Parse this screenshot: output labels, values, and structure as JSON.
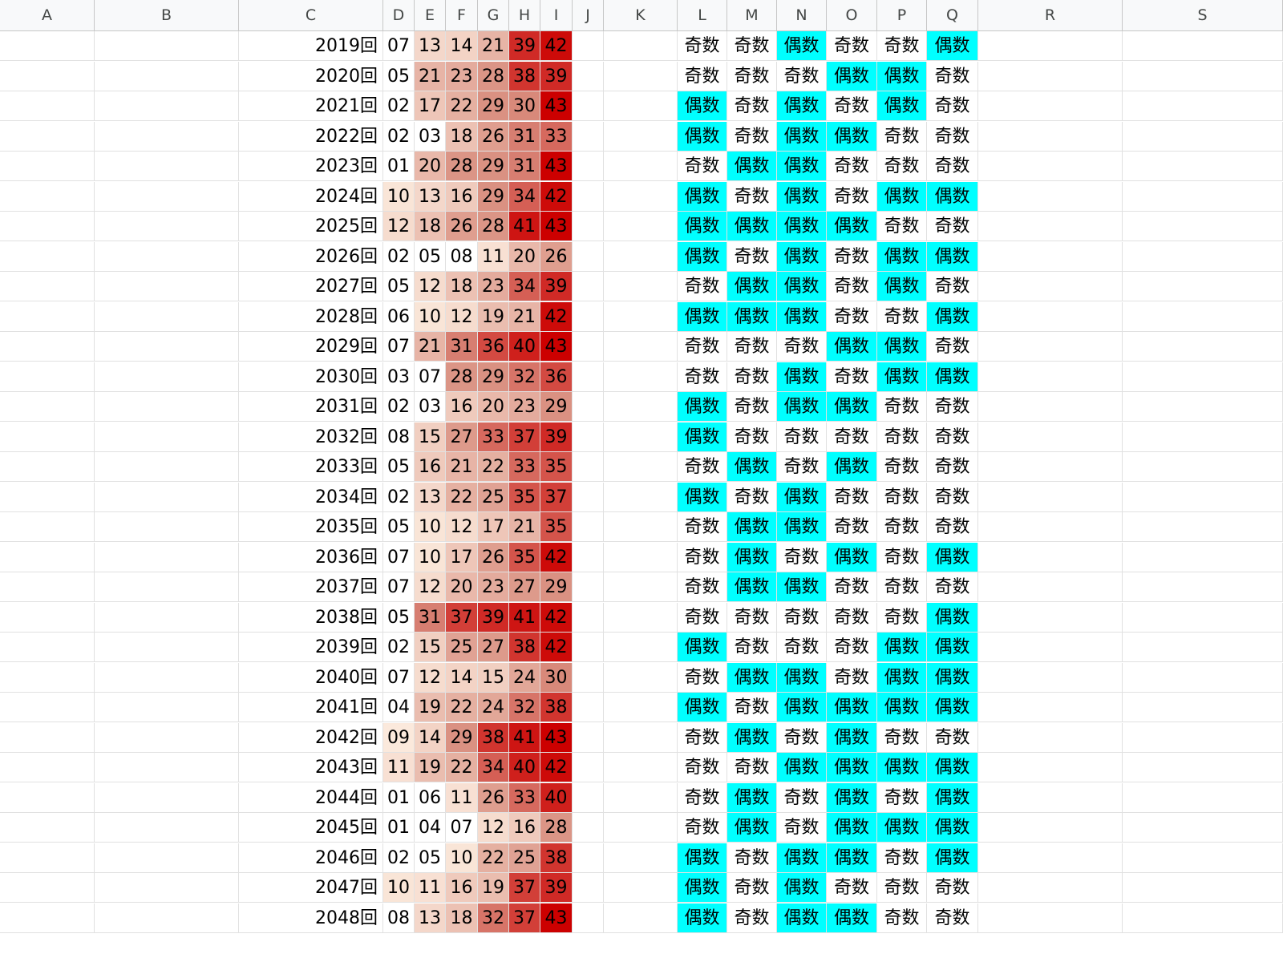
{
  "columns": [
    "A",
    "B",
    "C",
    "D",
    "E",
    "F",
    "G",
    "H",
    "I",
    "J",
    "K",
    "L",
    "M",
    "N",
    "O",
    "P",
    "Q",
    "R",
    "S"
  ],
  "colors": {
    "even_highlight": "#00ffff",
    "odd_background": "#ffffff",
    "heat_low": "#fbe9dc",
    "heat_mid": "#d98f80",
    "heat_high": "#cc0000"
  },
  "rows": [
    {
      "label": "2019回",
      "nums": [
        "07",
        "13",
        "14",
        "21",
        "39",
        "42"
      ],
      "parity": [
        "奇数",
        "奇数",
        "偶数",
        "奇数",
        "奇数",
        "偶数"
      ]
    },
    {
      "label": "2020回",
      "nums": [
        "05",
        "21",
        "23",
        "28",
        "38",
        "39"
      ],
      "parity": [
        "奇数",
        "奇数",
        "奇数",
        "偶数",
        "偶数",
        "奇数"
      ]
    },
    {
      "label": "2021回",
      "nums": [
        "02",
        "17",
        "22",
        "29",
        "30",
        "43"
      ],
      "parity": [
        "偶数",
        "奇数",
        "偶数",
        "奇数",
        "偶数",
        "奇数"
      ]
    },
    {
      "label": "2022回",
      "nums": [
        "02",
        "03",
        "18",
        "26",
        "31",
        "33"
      ],
      "parity": [
        "偶数",
        "奇数",
        "偶数",
        "偶数",
        "奇数",
        "奇数"
      ]
    },
    {
      "label": "2023回",
      "nums": [
        "01",
        "20",
        "28",
        "29",
        "31",
        "43"
      ],
      "parity": [
        "奇数",
        "偶数",
        "偶数",
        "奇数",
        "奇数",
        "奇数"
      ]
    },
    {
      "label": "2024回",
      "nums": [
        "10",
        "13",
        "16",
        "29",
        "34",
        "42"
      ],
      "parity": [
        "偶数",
        "奇数",
        "偶数",
        "奇数",
        "偶数",
        "偶数"
      ]
    },
    {
      "label": "2025回",
      "nums": [
        "12",
        "18",
        "26",
        "28",
        "41",
        "43"
      ],
      "parity": [
        "偶数",
        "偶数",
        "偶数",
        "偶数",
        "奇数",
        "奇数"
      ]
    },
    {
      "label": "2026回",
      "nums": [
        "02",
        "05",
        "08",
        "11",
        "20",
        "26"
      ],
      "parity": [
        "偶数",
        "奇数",
        "偶数",
        "奇数",
        "偶数",
        "偶数"
      ]
    },
    {
      "label": "2027回",
      "nums": [
        "05",
        "12",
        "18",
        "23",
        "34",
        "39"
      ],
      "parity": [
        "奇数",
        "偶数",
        "偶数",
        "奇数",
        "偶数",
        "奇数"
      ]
    },
    {
      "label": "2028回",
      "nums": [
        "06",
        "10",
        "12",
        "19",
        "21",
        "42"
      ],
      "parity": [
        "偶数",
        "偶数",
        "偶数",
        "奇数",
        "奇数",
        "偶数"
      ]
    },
    {
      "label": "2029回",
      "nums": [
        "07",
        "21",
        "31",
        "36",
        "40",
        "43"
      ],
      "parity": [
        "奇数",
        "奇数",
        "奇数",
        "偶数",
        "偶数",
        "奇数"
      ]
    },
    {
      "label": "2030回",
      "nums": [
        "03",
        "07",
        "28",
        "29",
        "32",
        "36"
      ],
      "parity": [
        "奇数",
        "奇数",
        "偶数",
        "奇数",
        "偶数",
        "偶数"
      ]
    },
    {
      "label": "2031回",
      "nums": [
        "02",
        "03",
        "16",
        "20",
        "23",
        "29"
      ],
      "parity": [
        "偶数",
        "奇数",
        "偶数",
        "偶数",
        "奇数",
        "奇数"
      ]
    },
    {
      "label": "2032回",
      "nums": [
        "08",
        "15",
        "27",
        "33",
        "37",
        "39"
      ],
      "parity": [
        "偶数",
        "奇数",
        "奇数",
        "奇数",
        "奇数",
        "奇数"
      ]
    },
    {
      "label": "2033回",
      "nums": [
        "05",
        "16",
        "21",
        "22",
        "33",
        "35"
      ],
      "parity": [
        "奇数",
        "偶数",
        "奇数",
        "偶数",
        "奇数",
        "奇数"
      ]
    },
    {
      "label": "2034回",
      "nums": [
        "02",
        "13",
        "22",
        "25",
        "35",
        "37"
      ],
      "parity": [
        "偶数",
        "奇数",
        "偶数",
        "奇数",
        "奇数",
        "奇数"
      ]
    },
    {
      "label": "2035回",
      "nums": [
        "05",
        "10",
        "12",
        "17",
        "21",
        "35"
      ],
      "parity": [
        "奇数",
        "偶数",
        "偶数",
        "奇数",
        "奇数",
        "奇数"
      ]
    },
    {
      "label": "2036回",
      "nums": [
        "07",
        "10",
        "17",
        "26",
        "35",
        "42"
      ],
      "parity": [
        "奇数",
        "偶数",
        "奇数",
        "偶数",
        "奇数",
        "偶数"
      ]
    },
    {
      "label": "2037回",
      "nums": [
        "07",
        "12",
        "20",
        "23",
        "27",
        "29"
      ],
      "parity": [
        "奇数",
        "偶数",
        "偶数",
        "奇数",
        "奇数",
        "奇数"
      ]
    },
    {
      "label": "2038回",
      "nums": [
        "05",
        "31",
        "37",
        "39",
        "41",
        "42"
      ],
      "parity": [
        "奇数",
        "奇数",
        "奇数",
        "奇数",
        "奇数",
        "偶数"
      ]
    },
    {
      "label": "2039回",
      "nums": [
        "02",
        "15",
        "25",
        "27",
        "38",
        "42"
      ],
      "parity": [
        "偶数",
        "奇数",
        "奇数",
        "奇数",
        "偶数",
        "偶数"
      ]
    },
    {
      "label": "2040回",
      "nums": [
        "07",
        "12",
        "14",
        "15",
        "24",
        "30"
      ],
      "parity": [
        "奇数",
        "偶数",
        "偶数",
        "奇数",
        "偶数",
        "偶数"
      ]
    },
    {
      "label": "2041回",
      "nums": [
        "04",
        "19",
        "22",
        "24",
        "32",
        "38"
      ],
      "parity": [
        "偶数",
        "奇数",
        "偶数",
        "偶数",
        "偶数",
        "偶数"
      ]
    },
    {
      "label": "2042回",
      "nums": [
        "09",
        "14",
        "29",
        "38",
        "41",
        "43"
      ],
      "parity": [
        "奇数",
        "偶数",
        "奇数",
        "偶数",
        "奇数",
        "奇数"
      ]
    },
    {
      "label": "2043回",
      "nums": [
        "11",
        "19",
        "22",
        "34",
        "40",
        "42"
      ],
      "parity": [
        "奇数",
        "奇数",
        "偶数",
        "偶数",
        "偶数",
        "偶数"
      ]
    },
    {
      "label": "2044回",
      "nums": [
        "01",
        "06",
        "11",
        "26",
        "33",
        "40"
      ],
      "parity": [
        "奇数",
        "偶数",
        "奇数",
        "偶数",
        "奇数",
        "偶数"
      ]
    },
    {
      "label": "2045回",
      "nums": [
        "01",
        "04",
        "07",
        "12",
        "16",
        "28"
      ],
      "parity": [
        "奇数",
        "偶数",
        "奇数",
        "偶数",
        "偶数",
        "偶数"
      ]
    },
    {
      "label": "2046回",
      "nums": [
        "02",
        "05",
        "10",
        "22",
        "25",
        "38"
      ],
      "parity": [
        "偶数",
        "奇数",
        "偶数",
        "偶数",
        "奇数",
        "偶数"
      ]
    },
    {
      "label": "2047回",
      "nums": [
        "10",
        "11",
        "16",
        "19",
        "37",
        "39"
      ],
      "parity": [
        "偶数",
        "奇数",
        "偶数",
        "奇数",
        "奇数",
        "奇数"
      ]
    },
    {
      "label": "2048回",
      "nums": [
        "08",
        "13",
        "18",
        "32",
        "37",
        "43"
      ],
      "parity": [
        "偶数",
        "奇数",
        "偶数",
        "偶数",
        "奇数",
        "奇数"
      ]
    }
  ]
}
